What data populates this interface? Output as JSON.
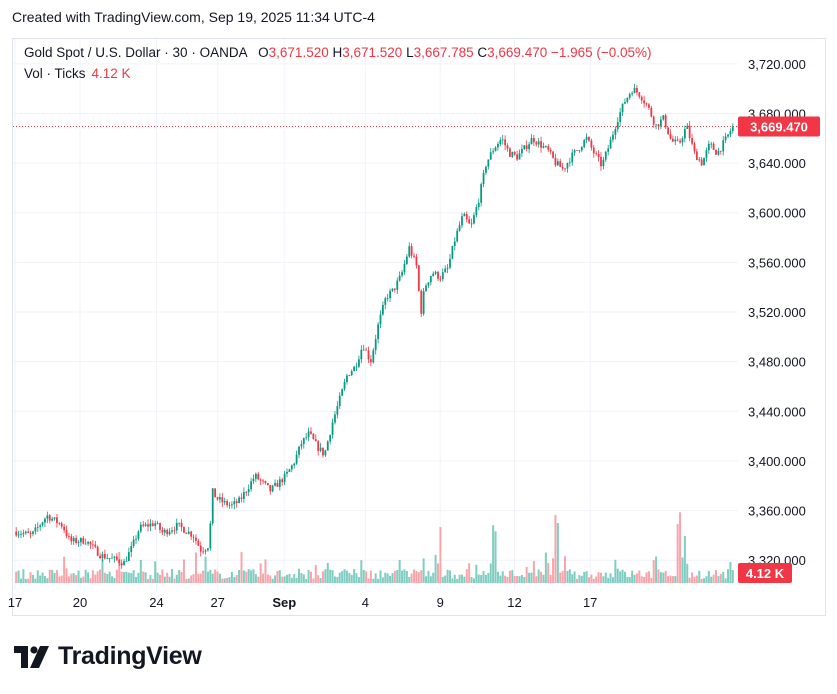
{
  "header": {
    "caption": "Created with TradingView.com, Sep 19, 2025 11:34 UTC-4"
  },
  "legend": {
    "symbol": "Gold Spot / U.S. Dollar · 30 · OANDA",
    "o_label": "O",
    "o_value": "3,671.520",
    "h_label": "H",
    "h_value": "3,671.520",
    "l_label": "L",
    "l_value": "3,667.785",
    "c_label": "C",
    "c_value": "3,669.470",
    "change": "−1.965 (−0.05%)",
    "volume_label": "Vol · Ticks",
    "volume_value": "4.12 K"
  },
  "price_axis": {
    "ticks": [
      "3,720.000",
      "3,680.000",
      "3,640.000",
      "3,600.000",
      "3,560.000",
      "3,520.000",
      "3,480.000",
      "3,440.000",
      "3,400.000",
      "3,360.000",
      "3,320.000"
    ],
    "last_price_label": "3,669.470",
    "volume_label": "4.12 K"
  },
  "time_axis": {
    "ticks": [
      "17",
      "20",
      "24",
      "27",
      "Sep",
      "4",
      "9",
      "12",
      "17"
    ]
  },
  "colors": {
    "up": "#089981",
    "down": "#f23645",
    "up_vol": "#7fcdc0",
    "down_vol": "#f7a5ab",
    "grid": "#f0f3fa",
    "text": "#131722"
  },
  "brand": {
    "name": "TradingView",
    "logo_icon": "tradingview-logo-icon"
  },
  "chart_data": {
    "type": "candlestick",
    "title": "Gold Spot / U.S. Dollar · 30 · OANDA",
    "timeframe": "30",
    "last": {
      "open": 3671.52,
      "high": 3671.52,
      "low": 3667.785,
      "close": 3669.47
    },
    "ylim": [
      3300,
      3730
    ],
    "x_ticks": [
      "17",
      "20",
      "24",
      "27",
      "Sep",
      "4",
      "9",
      "12",
      "17"
    ],
    "price_path": [
      [
        0,
        3343
      ],
      [
        2,
        3340
      ],
      [
        4,
        3356
      ],
      [
        6,
        3348
      ],
      [
        7,
        3335
      ],
      [
        9,
        3336
      ],
      [
        11,
        3324
      ],
      [
        12,
        3322
      ],
      [
        14,
        3318
      ],
      [
        15,
        3330
      ],
      [
        16,
        3346
      ],
      [
        18,
        3350
      ],
      [
        19,
        3342
      ],
      [
        21,
        3348
      ],
      [
        23,
        3340
      ],
      [
        24,
        3328
      ],
      [
        25,
        3332
      ],
      [
        25.5,
        3375
      ],
      [
        26,
        3370
      ],
      [
        27,
        3366
      ],
      [
        28,
        3364
      ],
      [
        29,
        3368
      ],
      [
        30,
        3378
      ],
      [
        31,
        3388
      ],
      [
        32,
        3382
      ],
      [
        33,
        3376
      ],
      [
        34,
        3382
      ],
      [
        35,
        3388
      ],
      [
        36,
        3398
      ],
      [
        37,
        3414
      ],
      [
        38,
        3422
      ],
      [
        39,
        3412
      ],
      [
        40,
        3405
      ],
      [
        41,
        3430
      ],
      [
        42,
        3450
      ],
      [
        43,
        3470
      ],
      [
        44,
        3476
      ],
      [
        45,
        3494
      ],
      [
        46,
        3480
      ],
      [
        47,
        3510
      ],
      [
        48,
        3532
      ],
      [
        49,
        3538
      ],
      [
        50,
        3550
      ],
      [
        51,
        3572
      ],
      [
        52,
        3556
      ],
      [
        52.5,
        3518
      ],
      [
        53,
        3540
      ],
      [
        54,
        3552
      ],
      [
        55,
        3548
      ],
      [
        56,
        3555
      ],
      [
        57,
        3580
      ],
      [
        58,
        3598
      ],
      [
        59,
        3588
      ],
      [
        60,
        3610
      ],
      [
        61,
        3640
      ],
      [
        62,
        3652
      ],
      [
        63,
        3660
      ],
      [
        64,
        3648
      ],
      [
        65,
        3645
      ],
      [
        66,
        3652
      ],
      [
        67,
        3660
      ],
      [
        68,
        3655
      ],
      [
        69,
        3650
      ],
      [
        70,
        3640
      ],
      [
        71,
        3635
      ],
      [
        72,
        3645
      ],
      [
        73,
        3652
      ],
      [
        74,
        3660
      ],
      [
        75,
        3648
      ],
      [
        76,
        3638
      ],
      [
        77,
        3655
      ],
      [
        78,
        3675
      ],
      [
        79,
        3690
      ],
      [
        80,
        3700
      ],
      [
        81,
        3695
      ],
      [
        82,
        3685
      ],
      [
        83,
        3670
      ],
      [
        84,
        3676
      ],
      [
        85,
        3658
      ],
      [
        86,
        3655
      ],
      [
        87,
        3670
      ],
      [
        88,
        3648
      ],
      [
        89,
        3640
      ],
      [
        90,
        3655
      ],
      [
        91,
        3648
      ],
      [
        92,
        3658
      ],
      [
        93,
        3669.47
      ]
    ],
    "volume_spikes": [
      [
        55,
        3.2
      ],
      [
        62,
        4.5
      ],
      [
        70,
        3.0
      ],
      [
        78,
        2.8
      ],
      [
        86,
        5.2
      ],
      [
        87,
        3.4
      ]
    ]
  }
}
